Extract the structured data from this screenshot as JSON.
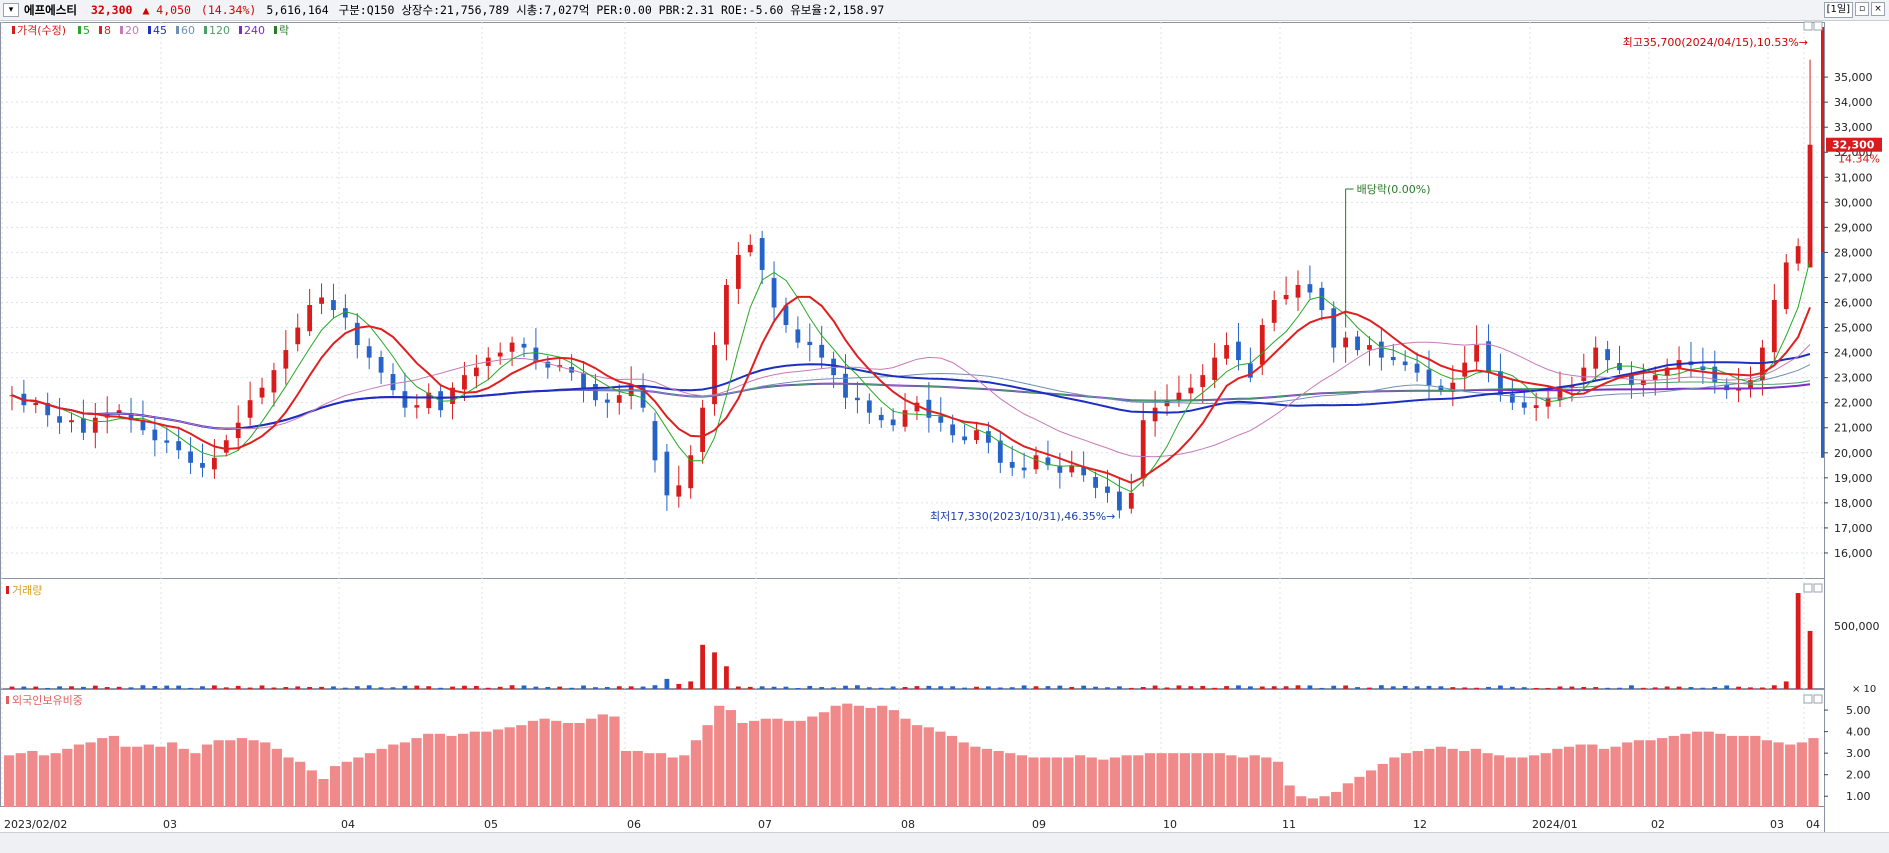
{
  "header": {
    "name": "에프에스티",
    "price": "32,300",
    "change": "▲ 4,050",
    "rate": "(14.34%)",
    "volume": "5,616,164",
    "info": "구분:Q150 상장수:21,756,789 시총:7,027억 PER:0.00 PBR:2.31 ROE:-5.60 유보율:2,158.97",
    "period_label": "[1일]"
  },
  "legend": {
    "price_label": "가격(수정)",
    "ma": [
      {
        "label": "5",
        "color": "#27a827"
      },
      {
        "label": "8",
        "color": "#e02020"
      },
      {
        "label": "20",
        "color": "#c879b8"
      },
      {
        "label": "45",
        "color": "#1d2fc0"
      },
      {
        "label": "60",
        "color": "#6f8fb8"
      },
      {
        "label": "120",
        "color": "#4aa06a"
      },
      {
        "label": "240",
        "color": "#7b2cc7"
      },
      {
        "label": "락",
        "color": "#2a7a2a"
      }
    ],
    "volume_label": "거래량",
    "foreign_label": "외국인보유비중"
  },
  "chart_data": [
    {
      "type": "candlestick",
      "title": "",
      "x_labels": [
        "2023/02/02",
        "03",
        "04",
        "05",
        "06",
        "07",
        "08",
        "09",
        "10",
        "11",
        "12",
        "2024/01",
        "02",
        "03",
        "04"
      ],
      "y_ticks": [
        "35,000",
        "34,000",
        "33,000",
        "32,000",
        "31,000",
        "30,000",
        "29,000",
        "28,000",
        "27,000",
        "26,000",
        "25,000",
        "24,000",
        "23,000",
        "22,000",
        "21,000",
        "20,000",
        "19,000",
        "18,000",
        "17,000",
        "16,000"
      ],
      "ylim": [
        15000,
        37200
      ],
      "close_series": [
        22300,
        21900,
        22000,
        21500,
        21200,
        21300,
        20800,
        21400,
        21600,
        21700,
        21300,
        20900,
        20500,
        20400,
        20100,
        19600,
        19400,
        19800,
        20500,
        21200,
        22100,
        22600,
        23300,
        24100,
        25000,
        25900,
        26200,
        25700,
        25400,
        24300,
        23800,
        23200,
        22500,
        21800,
        21900,
        22400,
        21700,
        22600,
        23100,
        23400,
        23800,
        24000,
        24400,
        24200,
        23600,
        23400,
        23500,
        23200,
        22600,
        22100,
        22000,
        22300,
        22700,
        21800,
        19700,
        18300,
        18700,
        19900,
        21800,
        24300,
        26700,
        27900,
        28300,
        27300,
        25800,
        25100,
        24400,
        24300,
        23800,
        23100,
        22200,
        22100,
        21600,
        21300,
        21100,
        21700,
        22000,
        21400,
        21200,
        20700,
        20500,
        20900,
        20400,
        19600,
        19400,
        19300,
        19900,
        19500,
        19200,
        19500,
        19100,
        18600,
        18400,
        17700,
        18400,
        21300,
        21800,
        22100,
        22400,
        22600,
        23100,
        23800,
        24300,
        23700,
        23000,
        25100,
        26100,
        26300,
        26700,
        26400,
        25700,
        24200,
        24600,
        24100,
        24300,
        23800,
        23700,
        23500,
        23200,
        22700,
        22500,
        22800,
        23600,
        24300,
        23200,
        22300,
        22000,
        21800,
        21900,
        22200,
        22600,
        22700,
        23400,
        24200,
        23700,
        23300,
        22700,
        22900,
        23100,
        23400,
        23700,
        23500,
        23300,
        22800,
        22500,
        22600,
        22900,
        24200,
        26100,
        27600,
        28250,
        32300
      ],
      "annotations": [
        {
          "text": "최고35,700(2024/04/15),10.53%→",
          "color": "#d40000"
        },
        {
          "text": "최저17,330(2023/10/31),46.35%→",
          "color": "#1d3fb0"
        },
        {
          "text": "배당락(0.00%)",
          "color": "#2a7a2a"
        }
      ],
      "current_price_label": "32,300",
      "current_rate_label": "14.34%"
    },
    {
      "type": "bar",
      "title": "",
      "y_ticks": [
        "500,000"
      ],
      "unit_label": "× 10",
      "notable_values": {
        "2023/07 spike": 350000,
        "2024/04/15": 760000,
        "2024/04/16": 460000
      }
    },
    {
      "type": "bar",
      "title": "",
      "y_ticks": [
        "5.00",
        "4.00",
        "3.00",
        "2.00",
        "1.00"
      ],
      "ylim": [
        0.5,
        5.7
      ],
      "values": [
        2.9,
        3.0,
        3.1,
        2.9,
        3.0,
        3.2,
        3.4,
        3.5,
        3.7,
        3.8,
        3.3,
        3.3,
        3.4,
        3.3,
        3.5,
        3.2,
        3.0,
        3.4,
        3.6,
        3.6,
        3.7,
        3.6,
        3.5,
        3.2,
        2.8,
        2.6,
        2.2,
        1.8,
        2.4,
        2.6,
        2.8,
        3.0,
        3.2,
        3.4,
        3.5,
        3.7,
        3.9,
        3.9,
        3.8,
        3.9,
        4.0,
        4.0,
        4.1,
        4.2,
        4.3,
        4.5,
        4.6,
        4.5,
        4.4,
        4.4,
        4.6,
        4.8,
        4.7,
        3.1,
        3.1,
        3.0,
        3.0,
        2.8,
        2.9,
        3.6,
        4.3,
        5.2,
        5.0,
        4.4,
        4.5,
        4.6,
        4.6,
        4.5,
        4.5,
        4.7,
        4.9,
        5.2,
        5.3,
        5.2,
        5.1,
        5.2,
        5.0,
        4.6,
        4.3,
        4.2,
        4.0,
        3.8,
        3.5,
        3.3,
        3.2,
        3.1,
        3.0,
        2.9,
        2.8,
        2.8,
        2.8,
        2.8,
        2.9,
        2.8,
        2.7,
        2.8,
        2.9,
        2.9,
        3.0,
        3.0,
        3.0,
        3.0,
        3.0,
        3.0,
        3.0,
        2.9,
        2.8,
        2.9,
        2.8,
        2.6,
        1.5,
        1.0,
        0.9,
        1.0,
        1.2,
        1.6,
        1.9,
        2.2,
        2.5,
        2.8,
        3.0,
        3.1,
        3.2,
        3.3,
        3.2,
        3.1,
        3.2,
        3.0,
        2.9,
        2.8,
        2.8,
        2.9,
        3.0,
        3.2,
        3.3,
        3.4,
        3.4,
        3.2,
        3.3,
        3.5,
        3.6,
        3.6,
        3.7,
        3.8,
        3.9,
        4.0,
        4.0,
        3.9,
        3.8,
        3.8,
        3.8,
        3.6,
        3.5,
        3.4,
        3.5,
        3.7
      ]
    }
  ]
}
